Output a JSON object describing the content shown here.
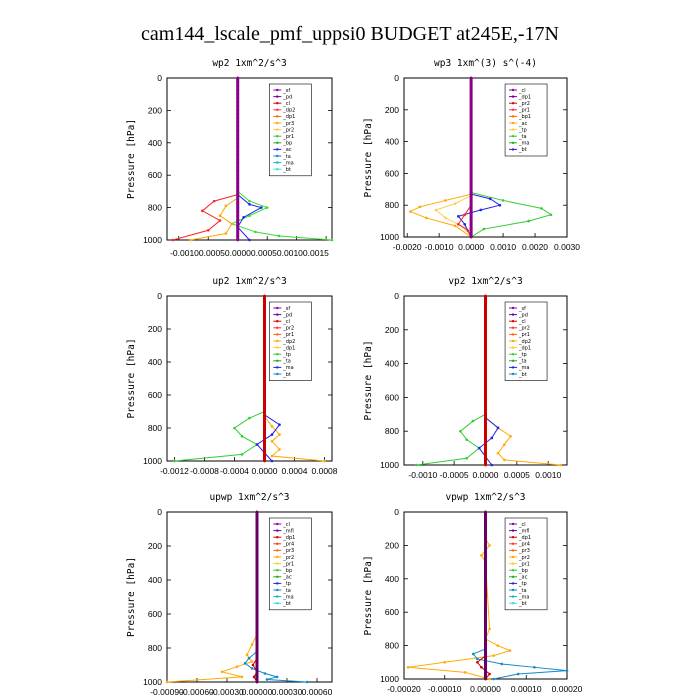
{
  "figure_title": "cam144_lscale_pmf_uppsi0  BUDGET at245E,-17N",
  "chart_data": [
    {
      "type": "line",
      "title": "wp2   1xm^2/s^3",
      "ylabel": "Pressure [hPa]",
      "ylim": [
        1000,
        0
      ],
      "xlim": [
        -0.0012,
        0.0016
      ],
      "xticks": [
        "-0.00100.00050.00000.00050.00100.0015"
      ],
      "yticks": [
        "0",
        "200",
        "400",
        "600",
        "800",
        "1000"
      ],
      "legend": [
        "_sf",
        "_pd",
        "_cl",
        "_dp2",
        "_dp1",
        "_pr3",
        "_pr2",
        "_pr1",
        "_bp",
        "_ac",
        "_ta",
        "_ma",
        "_bt"
      ],
      "series": [
        {
          "name": "_pr1",
          "color": "#33dd33",
          "x": [
            0,
            0,
            0.0002,
            0.0005,
            0.0002,
            -0.0001,
            0.0003,
            0.0007,
            0.0016
          ],
          "y": [
            0,
            700,
            760,
            800,
            850,
            900,
            950,
            975,
            1000
          ]
        },
        {
          "name": "_dp2",
          "color": "#ff2222",
          "x": [
            0,
            0,
            -0.0004,
            -0.0006,
            -0.0003,
            -0.0005,
            -0.0011
          ],
          "y": [
            0,
            720,
            760,
            820,
            880,
            940,
            1000
          ]
        },
        {
          "name": "_pr2",
          "color": "#ffaa00",
          "x": [
            0,
            0,
            -0.0002,
            -0.0003,
            -0.0001,
            -0.0002,
            -0.0008
          ],
          "y": [
            0,
            740,
            790,
            850,
            900,
            960,
            1000
          ]
        },
        {
          "name": "_ac",
          "color": "#2222ee",
          "x": [
            0,
            0,
            0.0002,
            0.0004,
            0.0001,
            0,
            0.0002
          ],
          "y": [
            0,
            720,
            780,
            800,
            860,
            920,
            1000
          ]
        },
        {
          "name": "_bt",
          "color": "#880088",
          "x": [
            0,
            0
          ],
          "y": [
            0,
            1000
          ]
        }
      ]
    },
    {
      "type": "line",
      "title": "wp3   1xm^(3) s^(-4)",
      "ylabel": "Pressure [hPa]",
      "ylim": [
        1000,
        0
      ],
      "xlim": [
        -0.0021,
        0.003
      ],
      "xticks": [
        "-0.0020",
        "-0.0010",
        "0.0000",
        "0.0010",
        "0.0020",
        "0.0030"
      ],
      "yticks": [
        "0",
        "200",
        "400",
        "600",
        "800",
        "1000"
      ],
      "legend": [
        "_cl",
        "_dp1",
        "_pr2",
        "_pr1",
        "_bp1",
        "_ac",
        "_tp",
        "_ta",
        "_ma",
        "_bt"
      ],
      "series": [
        {
          "name": "_ac",
          "color": "#33cc33",
          "x": [
            0,
            0,
            0.001,
            0.0022,
            0.0025,
            0.0018,
            0.0004,
            0
          ],
          "y": [
            0,
            720,
            770,
            820,
            860,
            900,
            950,
            1000
          ]
        },
        {
          "name": "_pr1",
          "color": "#ffaa00",
          "x": [
            0,
            0,
            -0.0008,
            -0.0016,
            -0.0019,
            -0.0014,
            -0.0005,
            0
          ],
          "y": [
            0,
            730,
            770,
            810,
            840,
            880,
            930,
            1000
          ]
        },
        {
          "name": "_pr2",
          "color": "#ffcc55",
          "x": [
            0,
            0,
            -0.0005,
            -0.0011,
            -0.0008,
            -0.0002,
            0
          ],
          "y": [
            0,
            740,
            790,
            830,
            880,
            940,
            1000
          ]
        },
        {
          "name": "_tp",
          "color": "#2222ee",
          "x": [
            0,
            0,
            0.0006,
            0.0009,
            0.0003,
            -0.0004,
            -0.0002,
            0
          ],
          "y": [
            0,
            730,
            760,
            800,
            830,
            870,
            920,
            1000
          ]
        },
        {
          "name": "_dp1",
          "color": "#ff2222",
          "x": [
            0,
            0,
            -0.0002,
            -0.0004,
            -0.0001,
            0
          ],
          "y": [
            0,
            800,
            860,
            920,
            960,
            1000
          ]
        },
        {
          "name": "_bt",
          "color": "#880088",
          "x": [
            0,
            0
          ],
          "y": [
            0,
            1000
          ]
        }
      ]
    },
    {
      "type": "line",
      "title": "up2   1xm^2/s^3",
      "ylabel": "Pressure [hPa]",
      "ylim": [
        1000,
        0
      ],
      "xlim": [
        -0.0013,
        0.0009
      ],
      "xticks": [
        "-0.0012",
        "-0.0008",
        "-0.0004",
        "0.0000",
        "0.0004",
        "0.0008"
      ],
      "yticks": [
        "0",
        "200",
        "400",
        "600",
        "800",
        "1000"
      ],
      "legend": [
        "_sf",
        "_pd",
        "_cl",
        "_pr2",
        "_pr1",
        "_dp2",
        "_dp1",
        "_tp",
        "_ta",
        "_ma",
        "_bt"
      ],
      "series": [
        {
          "name": "_dp2",
          "color": "#33cc33",
          "x": [
            0,
            0,
            -0.0002,
            -0.0004,
            -0.0003,
            -0.0001,
            -0.0003,
            -0.0012
          ],
          "y": [
            0,
            700,
            740,
            800,
            850,
            900,
            960,
            1000
          ]
        },
        {
          "name": "_pr2",
          "color": "#ffaa00",
          "x": [
            0,
            0,
            0.0001,
            0.0002,
            0.0001,
            0.0002,
            0.0001,
            0.0008
          ],
          "y": [
            0,
            730,
            790,
            840,
            880,
            930,
            970,
            1000
          ]
        },
        {
          "name": "_tp",
          "color": "#2222ee",
          "x": [
            0,
            0,
            0.0002,
            0.0001,
            -0.0001,
            0,
            0.0001
          ],
          "y": [
            0,
            720,
            780,
            840,
            900,
            950,
            1000
          ]
        },
        {
          "name": "_sf",
          "color": "#cc0000",
          "x": [
            0,
            0
          ],
          "y": [
            0,
            1000
          ]
        }
      ]
    },
    {
      "type": "line",
      "title": "vp2   1xm^2/s^3",
      "ylabel": "Pressure [hPa]",
      "ylim": [
        1000,
        0
      ],
      "xlim": [
        -0.0013,
        0.0013
      ],
      "xticks": [
        "-0.0010",
        "-0.0005",
        "0.0000",
        "0.0005",
        "0.0010"
      ],
      "yticks": [
        "0",
        "200",
        "400",
        "600",
        "800",
        "1000"
      ],
      "legend": [
        "_sf",
        "_pd",
        "_cl",
        "_pr2",
        "_pr1",
        "_dp2",
        "_dp1",
        "_tp",
        "_ta",
        "_ma",
        "_bt"
      ],
      "series": [
        {
          "name": "_dp2",
          "color": "#33cc33",
          "x": [
            0,
            0,
            -0.0002,
            -0.0004,
            -0.0003,
            -0.0001,
            -0.0003,
            -0.0011
          ],
          "y": [
            0,
            700,
            740,
            800,
            850,
            900,
            960,
            1000
          ]
        },
        {
          "name": "_pr2",
          "color": "#ffaa00",
          "x": [
            0,
            0,
            0.0002,
            0.0004,
            0.0003,
            0.0002,
            0.0003,
            0.0012
          ],
          "y": [
            0,
            720,
            780,
            830,
            880,
            930,
            970,
            1000
          ]
        },
        {
          "name": "_tp",
          "color": "#2222ee",
          "x": [
            0,
            0,
            0.0002,
            0.0001,
            -0.0001,
            0,
            0.0001
          ],
          "y": [
            0,
            720,
            780,
            840,
            900,
            950,
            1000
          ]
        },
        {
          "name": "_sf",
          "color": "#cc0000",
          "x": [
            0,
            0
          ],
          "y": [
            0,
            1000
          ]
        }
      ]
    },
    {
      "type": "line",
      "title": "upwp   1xm^2/s^3",
      "ylabel": "Pressure [hPa]",
      "ylim": [
        1000,
        0
      ],
      "xlim": [
        -0.0009,
        0.00075
      ],
      "xticks": [
        "-0.00090",
        "-0.00060",
        "-0.00030",
        "0.00000",
        "0.00030",
        "0.00060"
      ],
      "yticks": [
        "0",
        "200",
        "400",
        "600",
        "800",
        "1000"
      ],
      "legend": [
        "_cl",
        "_mfl",
        "_dp1",
        "_pr4",
        "_pr3",
        "_pr2",
        "_pr1",
        "_bp",
        "_ac",
        "_tp",
        "_ta",
        "_ma",
        "_bt"
      ],
      "series": [
        {
          "name": "_pr2",
          "color": "#ffaa00",
          "x": [
            0,
            0,
            -5e-05,
            -0.0001,
            -5e-05,
            -0.0002,
            -0.00035,
            -0.00015,
            -0.0009
          ],
          "y": [
            0,
            720,
            780,
            840,
            880,
            910,
            940,
            970,
            1000
          ]
        },
        {
          "name": "_tp",
          "color": "#1188cc",
          "x": [
            0,
            0,
            -8e-05,
            -0.00012,
            -5e-05,
            8e-05,
            0.0002,
            0.0001,
            0.0005
          ],
          "y": [
            0,
            820,
            860,
            890,
            920,
            950,
            970,
            985,
            1000
          ]
        },
        {
          "name": "_dp1",
          "color": "#cc0000",
          "x": [
            0,
            0,
            -4e-05,
            0,
            -3e-05,
            0
          ],
          "y": [
            0,
            860,
            900,
            940,
            970,
            1000
          ]
        },
        {
          "name": "_mfl",
          "color": "#660066",
          "x": [
            0,
            0
          ],
          "y": [
            0,
            1000
          ]
        }
      ]
    },
    {
      "type": "line",
      "title": "vpwp   1xm^2/s^3",
      "ylabel": "Pressure [hPa]",
      "ylim": [
        1000,
        0
      ],
      "xlim": [
        -0.0002,
        0.0002
      ],
      "xticks": [
        "-0.00020",
        "-0.00010",
        "0.00000",
        "0.00010",
        "0.00020"
      ],
      "yticks": [
        "0",
        "200",
        "400",
        "600",
        "800",
        "1000"
      ],
      "legend": [
        "_cl",
        "_mfl",
        "_dp1",
        "_pr4",
        "_pr3",
        "_pr2",
        "_pr1",
        "_bp",
        "_ac",
        "_tp",
        "_ta",
        "_ma",
        "_bt"
      ],
      "series": [
        {
          "name": "_pr2",
          "color": "#ffaa00",
          "x": [
            0,
            0,
            1e-05,
            -1e-05,
            0,
            1e-05,
            0,
            3e-05,
            6e-05,
            2e-05,
            -0.0001,
            -0.00019,
            -5e-05,
            1e-05
          ],
          "y": [
            0,
            160,
            200,
            260,
            300,
            700,
            760,
            800,
            830,
            860,
            900,
            930,
            960,
            1000
          ]
        },
        {
          "name": "_tp",
          "color": "#1188cc",
          "x": [
            0,
            0,
            -3e-05,
            -2e-05,
            4e-05,
            0.00012,
            0.0002,
            8e-05,
            2e-05
          ],
          "y": [
            0,
            820,
            850,
            880,
            910,
            930,
            950,
            970,
            1000
          ]
        },
        {
          "name": "_dp1",
          "color": "#cc0000",
          "x": [
            0,
            0,
            -2e-05,
            -1e-05,
            1e-05,
            0
          ],
          "y": [
            0,
            860,
            900,
            930,
            970,
            1000
          ]
        },
        {
          "name": "_mfl",
          "color": "#660066",
          "x": [
            0,
            0
          ],
          "y": [
            0,
            1000
          ]
        }
      ]
    }
  ]
}
